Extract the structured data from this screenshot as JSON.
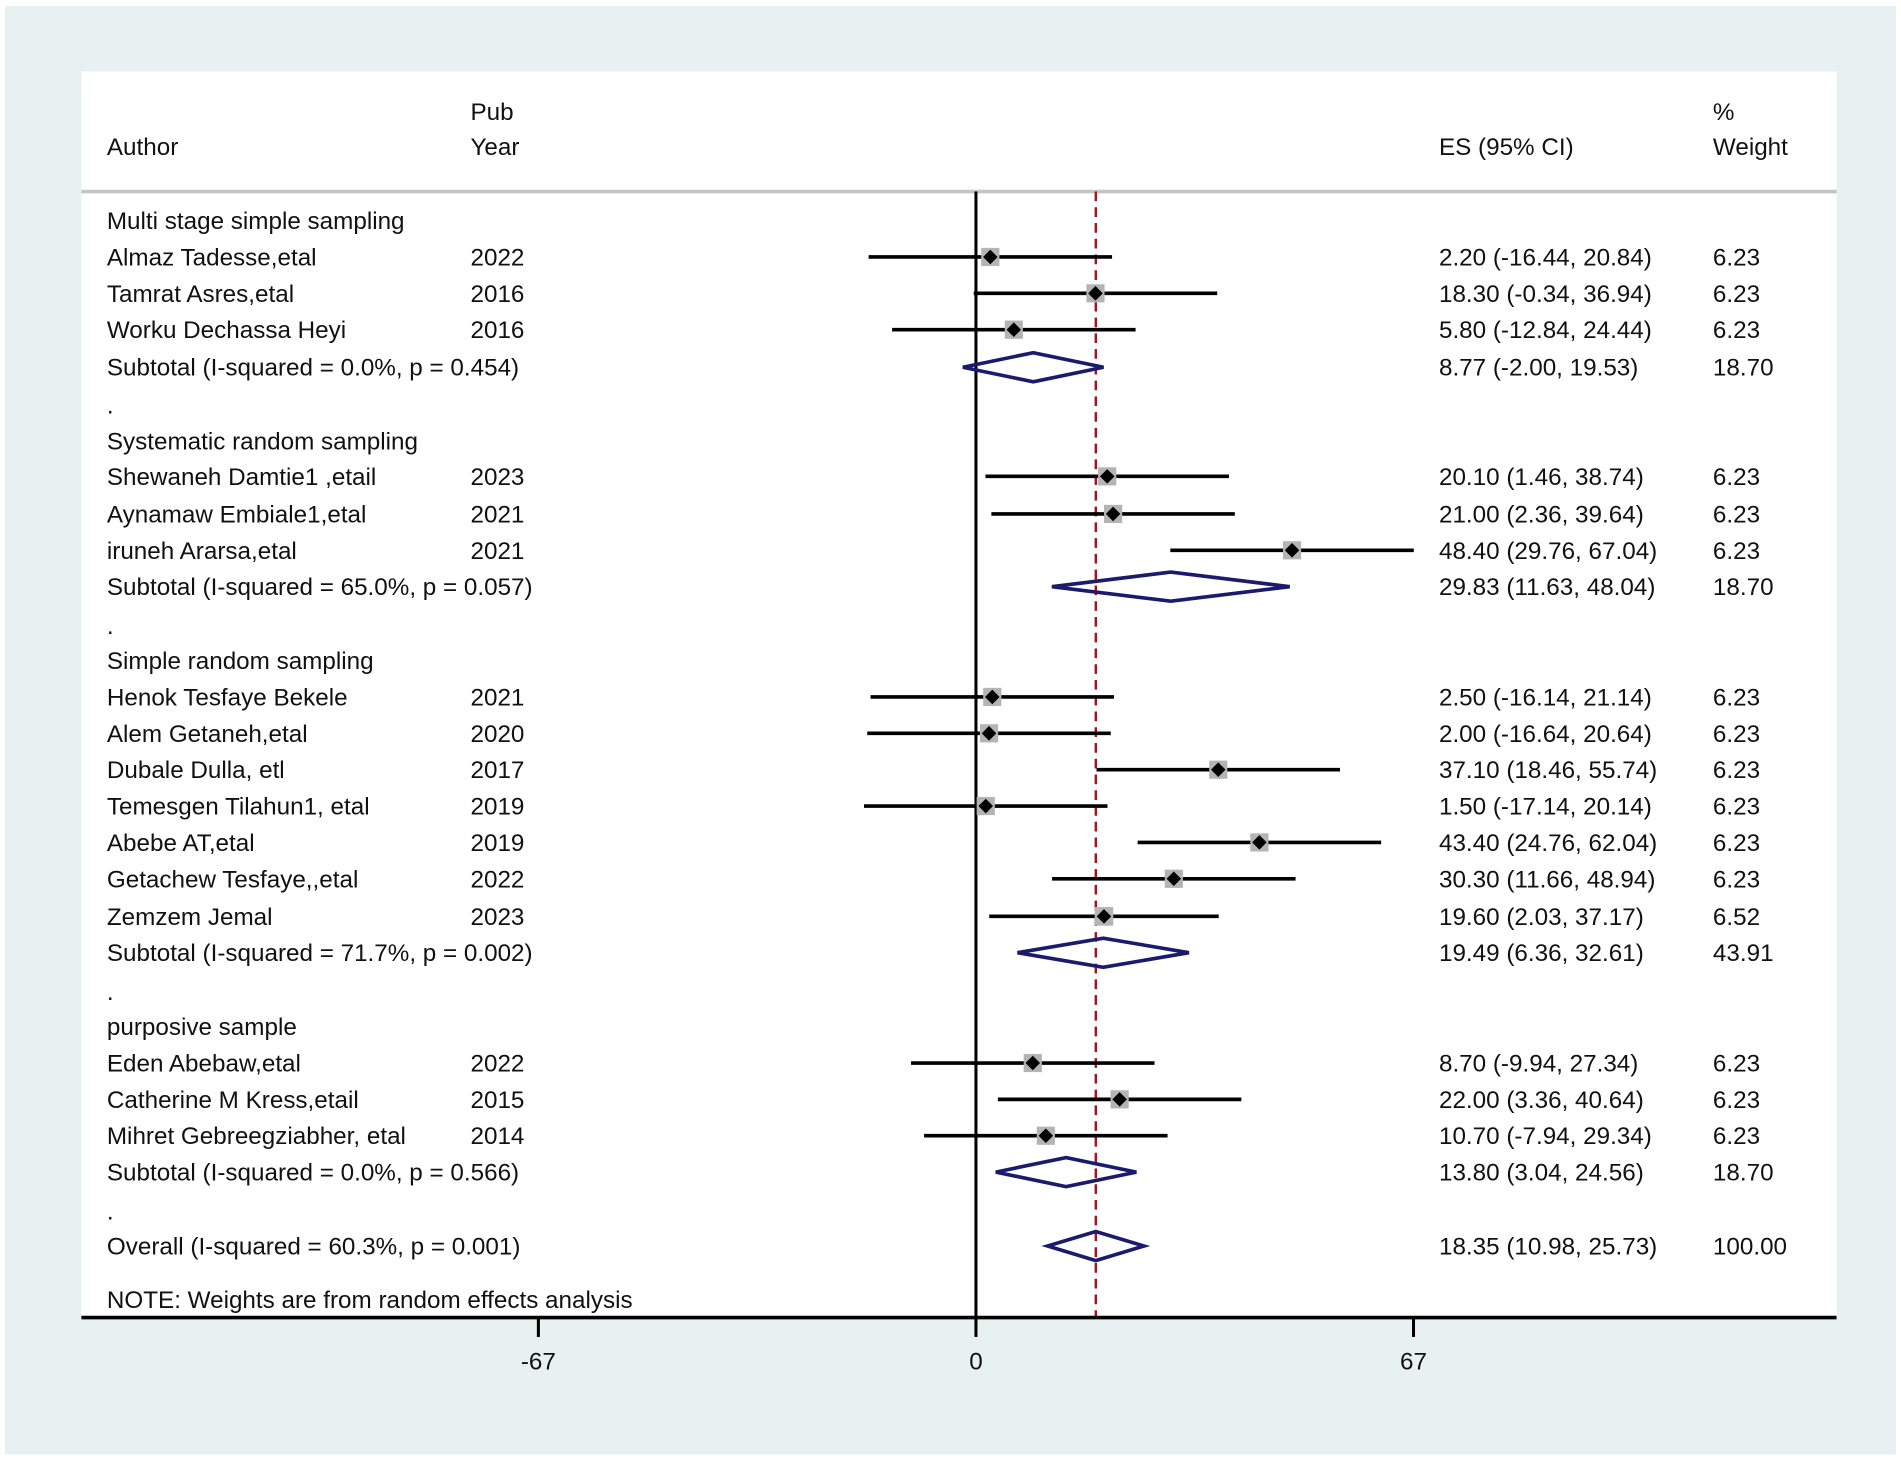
{
  "chart_data": {
    "type": "forest",
    "headers": {
      "author": "Author",
      "pub": "Pub",
      "year": "Year",
      "es": "ES (95% CI)",
      "pct": "%",
      "weight": "Weight"
    },
    "x_ticks": [
      {
        "value": -67,
        "label": "-67"
      },
      {
        "value": 0,
        "label": "0"
      },
      {
        "value": 67,
        "label": "67"
      }
    ],
    "xlim": [
      -67,
      67
    ],
    "reference_line": 0,
    "overall_line": 18.35,
    "note": "NOTE: Weights are from random effects analysis",
    "rows": [
      {
        "type": "group",
        "label": "Multi stage simple sampling"
      },
      {
        "type": "study",
        "label": "Almaz  Tadesse,etal",
        "year": "2022",
        "es": 2.2,
        "lo": -16.44,
        "hi": 20.84,
        "es_text": "2.20 (-16.44, 20.84)",
        "weight": "6.23"
      },
      {
        "type": "study",
        "label": "Tamrat  Asres,etal",
        "year": "2016",
        "es": 18.3,
        "lo": -0.34,
        "hi": 36.94,
        "es_text": "18.30 (-0.34, 36.94)",
        "weight": "6.23"
      },
      {
        "type": "study",
        "label": "Worku Dechassa Heyi",
        "year": "2016",
        "es": 5.8,
        "lo": -12.84,
        "hi": 24.44,
        "es_text": "5.80 (-12.84, 24.44)",
        "weight": "6.23"
      },
      {
        "type": "subtotal",
        "label": "Subtotal  (I-squared = 0.0%, p = 0.454)",
        "es": 8.77,
        "lo": -2.0,
        "hi": 19.53,
        "es_text": "8.77 (-2.00, 19.53)",
        "weight": "18.70"
      },
      {
        "type": "spacer",
        "label": "."
      },
      {
        "type": "group",
        "label": "Systematic random sampling"
      },
      {
        "type": "study",
        "label": "Shewaneh Damtie1 ,etail",
        "year": "2023",
        "es": 20.1,
        "lo": 1.46,
        "hi": 38.74,
        "es_text": "20.10 (1.46, 38.74)",
        "weight": "6.23"
      },
      {
        "type": "study",
        "label": "Aynamaw Embiale1,etal",
        "year": "2021",
        "es": 21.0,
        "lo": 2.36,
        "hi": 39.64,
        "es_text": "21.00 (2.36, 39.64)",
        "weight": "6.23"
      },
      {
        "type": "study",
        "label": "iruneh Ararsa,etal",
        "year": "2021",
        "es": 48.4,
        "lo": 29.76,
        "hi": 67.04,
        "es_text": "48.40 (29.76, 67.04)",
        "weight": "6.23"
      },
      {
        "type": "subtotal",
        "label": "Subtotal  (I-squared = 65.0%, p = 0.057)",
        "es": 29.83,
        "lo": 11.63,
        "hi": 48.04,
        "es_text": "29.83 (11.63, 48.04)",
        "weight": "18.70"
      },
      {
        "type": "spacer",
        "label": "."
      },
      {
        "type": "group",
        "label": "Simple random sampling"
      },
      {
        "type": "study",
        "label": "Henok Tesfaye Bekele",
        "year": "2021",
        "es": 2.5,
        "lo": -16.14,
        "hi": 21.14,
        "es_text": "2.50 (-16.14, 21.14)",
        "weight": "6.23"
      },
      {
        "type": "study",
        "label": "Alem Getaneh,etal",
        "year": "2020",
        "es": 2.0,
        "lo": -16.64,
        "hi": 20.64,
        "es_text": "2.00 (-16.64, 20.64)",
        "weight": "6.23"
      },
      {
        "type": "study",
        "label": "Dubale Dulla, etl",
        "year": "2017",
        "es": 37.1,
        "lo": 18.46,
        "hi": 55.74,
        "es_text": "37.10 (18.46, 55.74)",
        "weight": "6.23"
      },
      {
        "type": "study",
        "label": "Temesgen Tilahun1, etal",
        "year": "2019",
        "es": 1.5,
        "lo": -17.14,
        "hi": 20.14,
        "es_text": "1.50 (-17.14, 20.14)",
        "weight": "6.23"
      },
      {
        "type": "study",
        "label": "Abebe AT,etal",
        "year": "2019",
        "es": 43.4,
        "lo": 24.76,
        "hi": 62.04,
        "es_text": "43.40 (24.76, 62.04)",
        "weight": "6.23"
      },
      {
        "type": "study",
        "label": "Getachew Tesfaye,,etal",
        "year": "2022",
        "es": 30.3,
        "lo": 11.66,
        "hi": 48.94,
        "es_text": "30.30 (11.66, 48.94)",
        "weight": "6.23"
      },
      {
        "type": "study",
        "label": "Zemzem Jemal",
        "year": "2023",
        "es": 19.6,
        "lo": 2.03,
        "hi": 37.17,
        "es_text": "19.60 (2.03, 37.17)",
        "weight": "6.52"
      },
      {
        "type": "subtotal",
        "label": "Subtotal  (I-squared = 71.7%, p = 0.002)",
        "es": 19.49,
        "lo": 6.36,
        "hi": 32.61,
        "es_text": "19.49 (6.36, 32.61)",
        "weight": "43.91"
      },
      {
        "type": "spacer",
        "label": "."
      },
      {
        "type": "group",
        "label": "purposive sample"
      },
      {
        "type": "study",
        "label": "Eden Abebaw,etal",
        "year": "2022",
        "es": 8.7,
        "lo": -9.94,
        "hi": 27.34,
        "es_text": "8.70 (-9.94, 27.34)",
        "weight": "6.23"
      },
      {
        "type": "study",
        "label": "Catherine M Kress,etail",
        "year": "2015",
        "es": 22.0,
        "lo": 3.36,
        "hi": 40.64,
        "es_text": "22.00 (3.36, 40.64)",
        "weight": "6.23"
      },
      {
        "type": "study",
        "label": "Mihret Gebreegziabher, etal",
        "year": "2014",
        "es": 10.7,
        "lo": -7.94,
        "hi": 29.34,
        "es_text": "10.70 (-7.94, 29.34)",
        "weight": "6.23"
      },
      {
        "type": "subtotal",
        "label": "Subtotal  (I-squared = 0.0%, p = 0.566)",
        "es": 13.8,
        "lo": 3.04,
        "hi": 24.56,
        "es_text": "13.80 (3.04, 24.56)",
        "weight": "18.70"
      },
      {
        "type": "spacer",
        "label": "."
      },
      {
        "type": "overall",
        "label": "Overall  (I-squared = 60.3%, p = 0.001)",
        "es": 18.35,
        "lo": 10.98,
        "hi": 25.73,
        "es_text": "18.35 (10.98, 25.73)",
        "weight": "100.00"
      }
    ],
    "colors": {
      "background": "#e8f0f2",
      "panel": "#ffffff",
      "diamond": "#1a1a6e",
      "overall_line": "#a0161e",
      "weight_box": "#b4b4b4",
      "header_rule": "#c4c4c4"
    }
  }
}
